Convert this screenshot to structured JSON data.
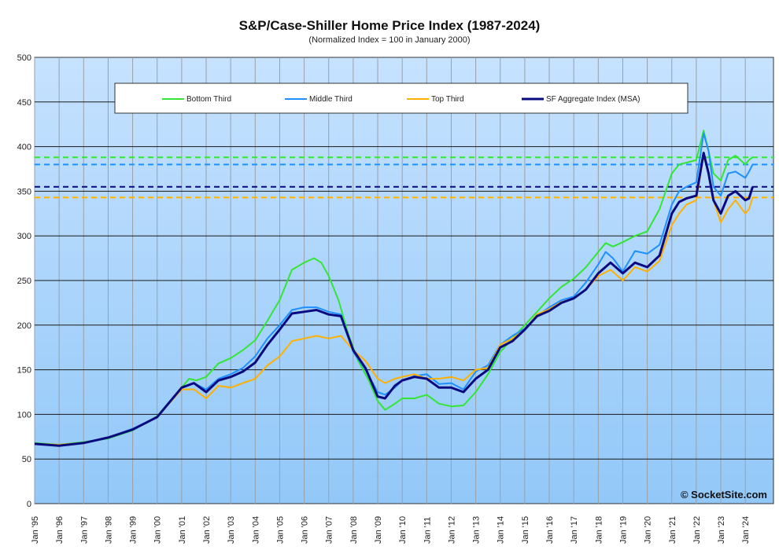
{
  "chart_data": {
    "type": "line",
    "title": "S&P/Case-Shiller Home Price Index (1987-2024)",
    "subtitle": "(Normalized Index = 100 in January 2000)",
    "ylim": [
      0,
      500
    ],
    "xlim": [
      1995.0,
      2025.15
    ],
    "yticks": [
      0,
      50,
      100,
      150,
      200,
      250,
      300,
      350,
      400,
      450,
      500
    ],
    "xticks": [
      {
        "x": 1995,
        "label": "Jan '95"
      },
      {
        "x": 1996,
        "label": "Jan '96"
      },
      {
        "x": 1997,
        "label": "Jan '97"
      },
      {
        "x": 1998,
        "label": "Jan '98"
      },
      {
        "x": 1999,
        "label": "Jan '99"
      },
      {
        "x": 2000,
        "label": "Jan '00"
      },
      {
        "x": 2001,
        "label": "Jan '01"
      },
      {
        "x": 2002,
        "label": "Jan '02"
      },
      {
        "x": 2003,
        "label": "Jan '03"
      },
      {
        "x": 2004,
        "label": "Jan '04"
      },
      {
        "x": 2005,
        "label": "Jan '05"
      },
      {
        "x": 2006,
        "label": "Jan '06"
      },
      {
        "x": 2007,
        "label": "Jan '07"
      },
      {
        "x": 2008,
        "label": "Jan '08"
      },
      {
        "x": 2009,
        "label": "Jan '09"
      },
      {
        "x": 2010,
        "label": "Jan '10"
      },
      {
        "x": 2011,
        "label": "Jan '11"
      },
      {
        "x": 2012,
        "label": "Jan '12"
      },
      {
        "x": 2013,
        "label": "Jan '13"
      },
      {
        "x": 2014,
        "label": "Jan '14"
      },
      {
        "x": 2015,
        "label": "Jan '15"
      },
      {
        "x": 2016,
        "label": "Jan '16"
      },
      {
        "x": 2017,
        "label": "Jan '17"
      },
      {
        "x": 2018,
        "label": "Jan '18"
      },
      {
        "x": 2019,
        "label": "Jan '19"
      },
      {
        "x": 2020,
        "label": "Jan '20"
      },
      {
        "x": 2021,
        "label": "Jan '21"
      },
      {
        "x": 2022,
        "label": "Jan '22"
      },
      {
        "x": 2023,
        "label": "Jan '23"
      },
      {
        "x": 2024,
        "label": "Jan '24"
      }
    ],
    "grid": true,
    "legend_position": "top",
    "series": [
      {
        "name": "Bottom Third",
        "color": "#33e633",
        "width": 2,
        "x": [
          1995,
          1996,
          1997,
          1998,
          1999,
          2000,
          2001,
          2001.3,
          2001.6,
          2002,
          2002.5,
          2003,
          2003.5,
          2004,
          2004.5,
          2005,
          2005.5,
          2006,
          2006.4,
          2006.7,
          2007,
          2007.4,
          2007.8,
          2008.2,
          2008.6,
          2009,
          2009.3,
          2009.7,
          2010,
          2010.5,
          2011,
          2011.5,
          2012,
          2012.5,
          2013,
          2013.5,
          2014,
          2014.5,
          2015,
          2015.5,
          2016,
          2016.5,
          2017,
          2017.5,
          2018,
          2018.3,
          2018.6,
          2019,
          2019.5,
          2020,
          2020.5,
          2021,
          2021.3,
          2021.6,
          2022,
          2022.3,
          2022.5,
          2022.7,
          2023,
          2023.3,
          2023.6,
          2024,
          2024.15,
          2024.3
        ],
        "y": [
          68,
          66,
          69,
          73,
          82,
          98,
          130,
          140,
          138,
          142,
          157,
          163,
          172,
          183,
          205,
          228,
          262,
          270,
          275,
          270,
          255,
          228,
          190,
          160,
          140,
          115,
          105,
          112,
          118,
          118,
          122,
          112,
          109,
          110,
          125,
          145,
          170,
          185,
          200,
          215,
          230,
          243,
          252,
          265,
          282,
          292,
          288,
          293,
          300,
          305,
          330,
          370,
          380,
          382,
          385,
          418,
          395,
          370,
          362,
          385,
          390,
          380,
          385,
          388
        ]
      },
      {
        "name": "Middle Third",
        "color": "#1e90ff",
        "width": 2,
        "x": [
          1995,
          1996,
          1997,
          1998,
          1999,
          2000,
          2001,
          2001.5,
          2002,
          2002.5,
          2003,
          2003.5,
          2004,
          2004.5,
          2005,
          2005.5,
          2006,
          2006.5,
          2007,
          2007.5,
          2008,
          2008.5,
          2009,
          2009.3,
          2009.7,
          2010,
          2010.5,
          2011,
          2011.5,
          2012,
          2012.5,
          2013,
          2013.5,
          2014,
          2014.5,
          2015,
          2015.5,
          2016,
          2016.5,
          2017,
          2017.5,
          2018,
          2018.3,
          2018.6,
          2019,
          2019.5,
          2020,
          2020.5,
          2021,
          2021.3,
          2021.6,
          2022,
          2022.3,
          2022.5,
          2022.7,
          2023,
          2023.3,
          2023.6,
          2024,
          2024.15,
          2024.3
        ],
        "y": [
          67,
          65,
          68,
          74,
          84,
          97,
          130,
          135,
          128,
          140,
          145,
          152,
          165,
          185,
          200,
          217,
          220,
          220,
          215,
          212,
          170,
          150,
          125,
          122,
          130,
          138,
          143,
          145,
          134,
          135,
          128,
          148,
          155,
          178,
          188,
          196,
          210,
          220,
          228,
          232,
          248,
          268,
          282,
          275,
          260,
          283,
          280,
          290,
          335,
          350,
          355,
          360,
          415,
          395,
          355,
          345,
          370,
          372,
          365,
          372,
          380
        ]
      },
      {
        "name": "Top Third",
        "color": "#ffb000",
        "width": 2,
        "x": [
          1995,
          1996,
          1997,
          1998,
          1999,
          2000,
          2001,
          2001.5,
          2002,
          2002.5,
          2003,
          2003.5,
          2004,
          2004.5,
          2005,
          2005.5,
          2006,
          2006.5,
          2007,
          2007.5,
          2008,
          2008.5,
          2009,
          2009.3,
          2009.7,
          2010,
          2010.5,
          2011,
          2011.5,
          2012,
          2012.5,
          2013,
          2013.5,
          2014,
          2014.5,
          2015,
          2015.5,
          2016,
          2016.5,
          2017,
          2017.5,
          2018,
          2018.5,
          2019,
          2019.5,
          2020,
          2020.5,
          2021,
          2021.3,
          2021.6,
          2022,
          2022.3,
          2022.5,
          2022.7,
          2023,
          2023.3,
          2023.6,
          2024,
          2024.15,
          2024.3
        ],
        "y": [
          67,
          66,
          68,
          74,
          83,
          97,
          128,
          128,
          118,
          132,
          130,
          135,
          140,
          155,
          165,
          182,
          185,
          188,
          185,
          188,
          172,
          160,
          140,
          135,
          140,
          142,
          145,
          140,
          140,
          142,
          138,
          150,
          152,
          178,
          185,
          195,
          212,
          218,
          226,
          230,
          240,
          255,
          262,
          250,
          265,
          260,
          272,
          312,
          325,
          335,
          340,
          390,
          370,
          340,
          315,
          330,
          340,
          325,
          330,
          343
        ]
      },
      {
        "name": "SF Aggregate Index (MSA)",
        "color": "#0a0a80",
        "width": 3,
        "x": [
          1995,
          1996,
          1997,
          1998,
          1999,
          2000,
          2001,
          2001.5,
          2002,
          2002.5,
          2003,
          2003.5,
          2004,
          2004.5,
          2005,
          2005.5,
          2006,
          2006.5,
          2007,
          2007.5,
          2008,
          2008.5,
          2009,
          2009.3,
          2009.7,
          2010,
          2010.5,
          2011,
          2011.5,
          2012,
          2012.5,
          2013,
          2013.5,
          2014,
          2014.5,
          2015,
          2015.5,
          2016,
          2016.5,
          2017,
          2017.5,
          2018,
          2018.5,
          2019,
          2019.5,
          2020,
          2020.5,
          2021,
          2021.3,
          2021.6,
          2022,
          2022.3,
          2022.5,
          2022.7,
          2023,
          2023.3,
          2023.6,
          2024,
          2024.15,
          2024.3
        ],
        "y": [
          67,
          65,
          68,
          74,
          83,
          97,
          130,
          135,
          125,
          138,
          142,
          148,
          158,
          178,
          195,
          213,
          215,
          217,
          212,
          210,
          172,
          152,
          120,
          118,
          132,
          138,
          142,
          140,
          130,
          130,
          125,
          140,
          150,
          175,
          182,
          195,
          210,
          216,
          225,
          230,
          240,
          258,
          270,
          258,
          270,
          265,
          278,
          325,
          338,
          342,
          345,
          393,
          370,
          340,
          325,
          345,
          350,
          340,
          342,
          355
        ]
      }
    ],
    "reference_lines": [
      {
        "y": 388,
        "color": "#33e633"
      },
      {
        "y": 380,
        "color": "#1e90ff"
      },
      {
        "y": 355,
        "color": "#0a0a80"
      },
      {
        "y": 343,
        "color": "#ffb000"
      }
    ],
    "watermark": "© SocketSite.com"
  }
}
